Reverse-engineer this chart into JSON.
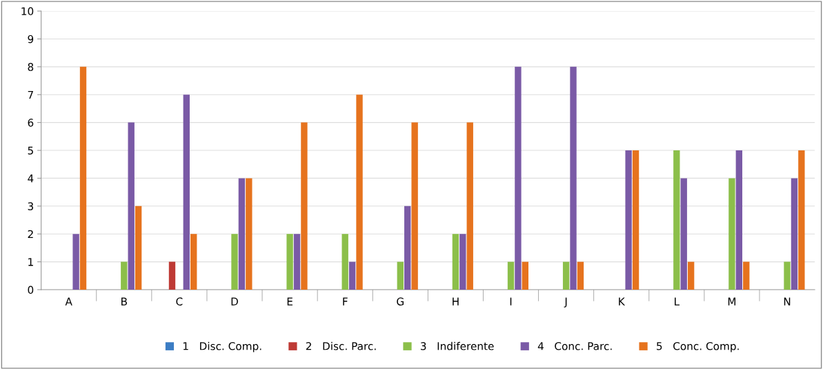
{
  "chart_data": {
    "type": "bar",
    "categories": [
      "A",
      "B",
      "C",
      "D",
      "E",
      "F",
      "G",
      "H",
      "I",
      "J",
      "K",
      "L",
      "M",
      "N"
    ],
    "series": [
      {
        "name": "1   Disc. Comp.",
        "color": "#3c7dc4",
        "values": [
          0,
          0,
          0,
          0,
          0,
          0,
          0,
          0,
          0,
          0,
          0,
          0,
          0,
          0
        ]
      },
      {
        "name": "2   Disc. Parc.",
        "color": "#be3a35",
        "values": [
          0,
          0,
          1,
          0,
          0,
          0,
          0,
          0,
          0,
          0,
          0,
          0,
          0,
          0
        ]
      },
      {
        "name": "3   Indiferente",
        "color": "#8cbf4a",
        "values": [
          0,
          1,
          0,
          2,
          2,
          2,
          1,
          2,
          1,
          1,
          0,
          5,
          4,
          1
        ]
      },
      {
        "name": "4   Conc. Parc.",
        "color": "#7a5aa6",
        "values": [
          2,
          6,
          7,
          4,
          2,
          1,
          3,
          2,
          8,
          8,
          5,
          4,
          5,
          4
        ]
      },
      {
        "name": "5   Conc. Comp.",
        "color": "#e6731e",
        "values": [
          8,
          3,
          2,
          4,
          6,
          7,
          6,
          6,
          1,
          1,
          5,
          1,
          1,
          5
        ]
      }
    ],
    "ylim": [
      0,
      10
    ],
    "yticks": [
      0,
      1,
      2,
      3,
      4,
      5,
      6,
      7,
      8,
      9,
      10
    ],
    "grid": "y",
    "legend": "bottom"
  }
}
